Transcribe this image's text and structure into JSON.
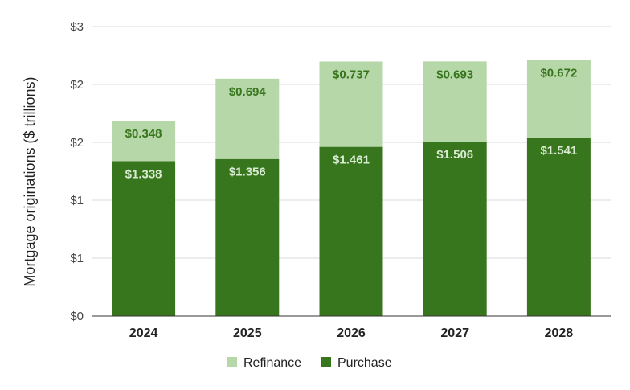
{
  "chart_data": {
    "type": "bar",
    "stacked": true,
    "categories": [
      "2024",
      "2025",
      "2026",
      "2027",
      "2028"
    ],
    "series": [
      {
        "name": "Purchase",
        "values": [
          1.338,
          1.356,
          1.461,
          1.506,
          1.541
        ],
        "labels": [
          "$1.338",
          "$1.356",
          "$1.461",
          "$1.506",
          "$1.541"
        ],
        "color": "#38761d",
        "label_color": "#d9ead3"
      },
      {
        "name": "Refinance",
        "values": [
          0.348,
          0.694,
          0.737,
          0.693,
          0.672
        ],
        "labels": [
          "$0.348",
          "$0.694",
          "$0.737",
          "$0.693",
          "$0.672"
        ],
        "color": "#b6d7a8",
        "label_color": "#38761d"
      }
    ],
    "ylabel": "Mortgage originations ($ trillions)",
    "ylim": [
      0,
      2.5
    ],
    "y_ticks": [
      0,
      0.5,
      1,
      1.5,
      2,
      2.5
    ],
    "y_tick_labels": [
      "$0",
      "$1",
      "$1",
      "$2",
      "$2",
      "$3"
    ],
    "grid": true,
    "legend": {
      "position": "bottom",
      "entries": [
        "Refinance",
        "Purchase"
      ]
    }
  }
}
